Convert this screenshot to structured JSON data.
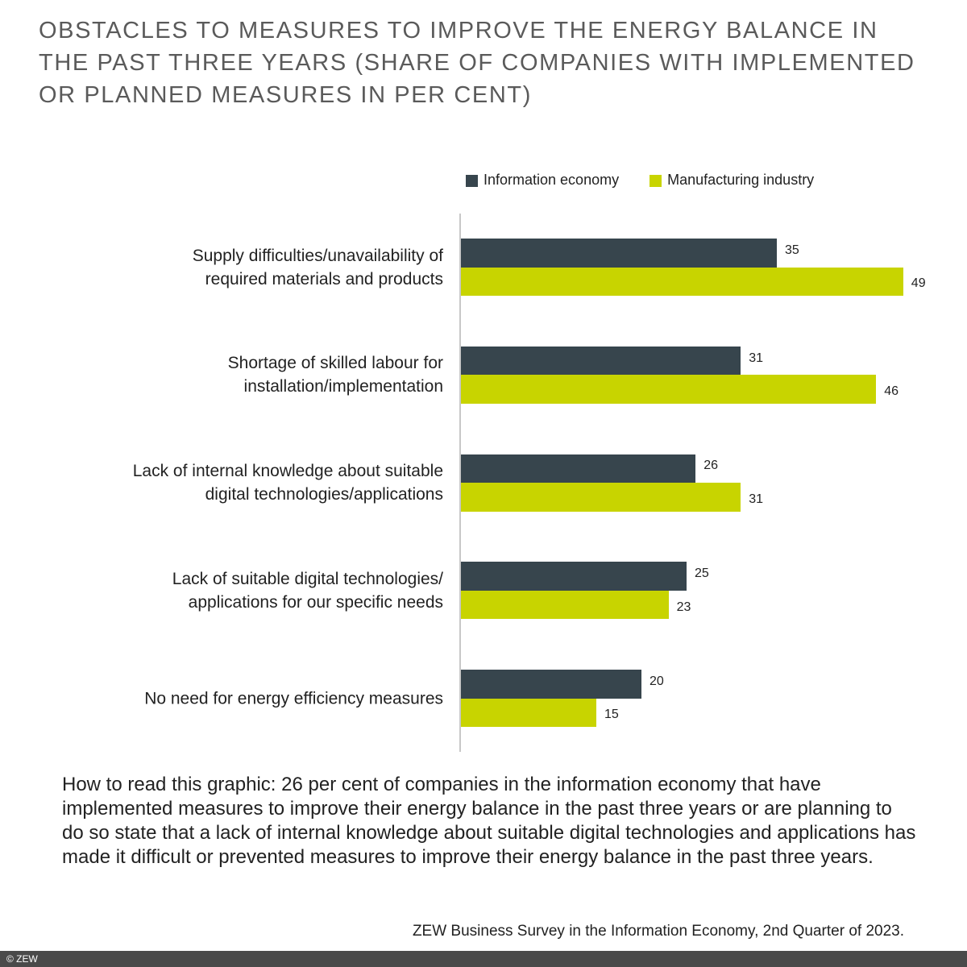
{
  "chart_data": {
    "type": "bar",
    "orientation": "horizontal",
    "title": "OBSTACLES TO MEASURES TO IMPROVE THE ENERGY BALANCE IN THE PAST THREE YEARS (SHARE OF COMPANIES WITH IMPLEMENTED OR PLANNED MEASURES IN PER CENT)",
    "categories": [
      "Supply difficulties/unavailability of\nrequired materials and products",
      "Shortage of skilled labour for\ninstallation/implementation",
      "Lack of internal knowledge about suitable\ndigital technologies/applications",
      "Lack of suitable digital technologies/\napplications for our specific needs",
      "No need for energy efficiency measures"
    ],
    "series": [
      {
        "name": "Information economy",
        "color": "#37454d",
        "values": [
          35,
          31,
          26,
          25,
          20
        ]
      },
      {
        "name": "Manufacturing industry",
        "color": "#c8d400",
        "values": [
          49,
          46,
          31,
          23,
          15
        ]
      }
    ],
    "legend": "top-right",
    "note": "How to read this graphic: 26 per cent of companies in the information economy that have implemented measures to improve their energy balance in the past three years or are planning to do so state that a lack of internal knowledge about suitable digital technologies and applications has made it difficult or prevented measures to improve their energy balance in the past three years.",
    "source": "ZEW Business Survey in the Information Economy, 2nd Quarter of 2023.",
    "copyright": "© ZEW"
  }
}
